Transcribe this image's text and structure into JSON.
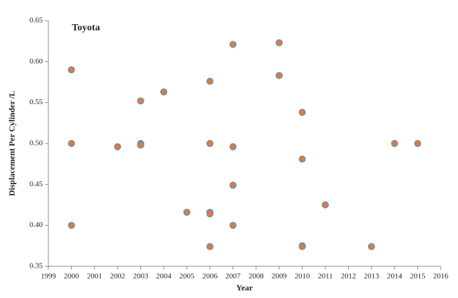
{
  "chart_data": {
    "type": "scatter",
    "title": "Toyota",
    "xlabel": "Year",
    "ylabel": "Displacement Per Cylinder /L",
    "x": [
      2000,
      2000,
      2000,
      2002,
      2003,
      2003,
      2003,
      2004,
      2005,
      2006,
      2006,
      2006,
      2006,
      2006,
      2007,
      2007,
      2007,
      2007,
      2009,
      2009,
      2010,
      2010,
      2010,
      2010,
      2011,
      2013,
      2014,
      2015
    ],
    "values": [
      0.59,
      0.5,
      0.4,
      0.496,
      0.552,
      0.5,
      0.498,
      0.563,
      0.416,
      0.576,
      0.5,
      0.416,
      0.414,
      0.374,
      0.621,
      0.496,
      0.449,
      0.4,
      0.623,
      0.583,
      0.538,
      0.481,
      0.375,
      0.374,
      0.425,
      0.374,
      0.5,
      0.5
    ],
    "color": "#e07b39",
    "edge_color": "#5b8fc9",
    "xlim": [
      1999,
      2016
    ],
    "ylim": [
      0.35,
      0.65
    ],
    "xticks": [
      1999,
      2000,
      2001,
      2002,
      2003,
      2004,
      2005,
      2006,
      2007,
      2008,
      2009,
      2010,
      2011,
      2012,
      2013,
      2014,
      2015,
      2016
    ],
    "yticks": [
      0.35,
      {
        "value": 0.4,
        "label": "0.40"
      },
      0.45,
      {
        "value": 0.5,
        "label": "0.50"
      },
      0.55,
      {
        "value": 0.6,
        "label": "0.60"
      },
      0.65
    ]
  }
}
